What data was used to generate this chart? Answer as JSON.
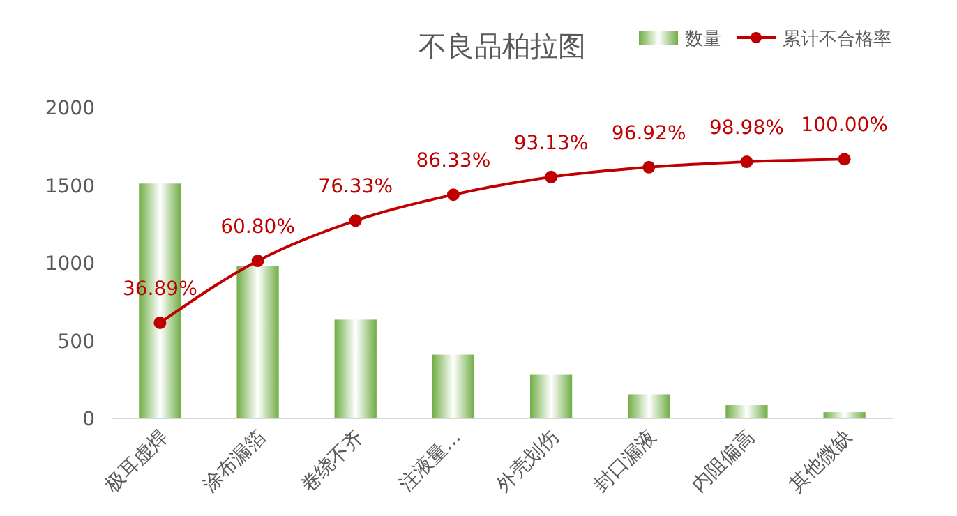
{
  "chart_data": {
    "type": "bar",
    "title": "不良品柏拉图",
    "categories": [
      "极耳虚焊",
      "涂布漏箔",
      "卷绕不齐",
      "注液量...",
      "外壳划伤",
      "封口漏液",
      "内阻偏高",
      "其他微缺"
    ],
    "series": [
      {
        "name": "数量",
        "color": "#70ad47",
        "values": [
          1510,
          980,
          635,
          410,
          280,
          155,
          85,
          40
        ]
      },
      {
        "name": "累计不合格率",
        "type": "line",
        "axis": "y2",
        "color": "#c00000",
        "marker": "circle",
        "values": [
          36.89,
          60.8,
          76.33,
          86.33,
          93.13,
          96.92,
          98.98,
          100
        ],
        "value_labels": [
          "36.89%",
          "60.80%",
          "76.33%",
          "86.33%",
          "93.13%",
          "96.92%",
          "98.98%",
          "100.00%"
        ]
      }
    ],
    "ylim": [
      0,
      2000
    ],
    "yticks": [
      0,
      500,
      1000,
      1500,
      2000
    ],
    "grid": false,
    "legend": "top right"
  }
}
